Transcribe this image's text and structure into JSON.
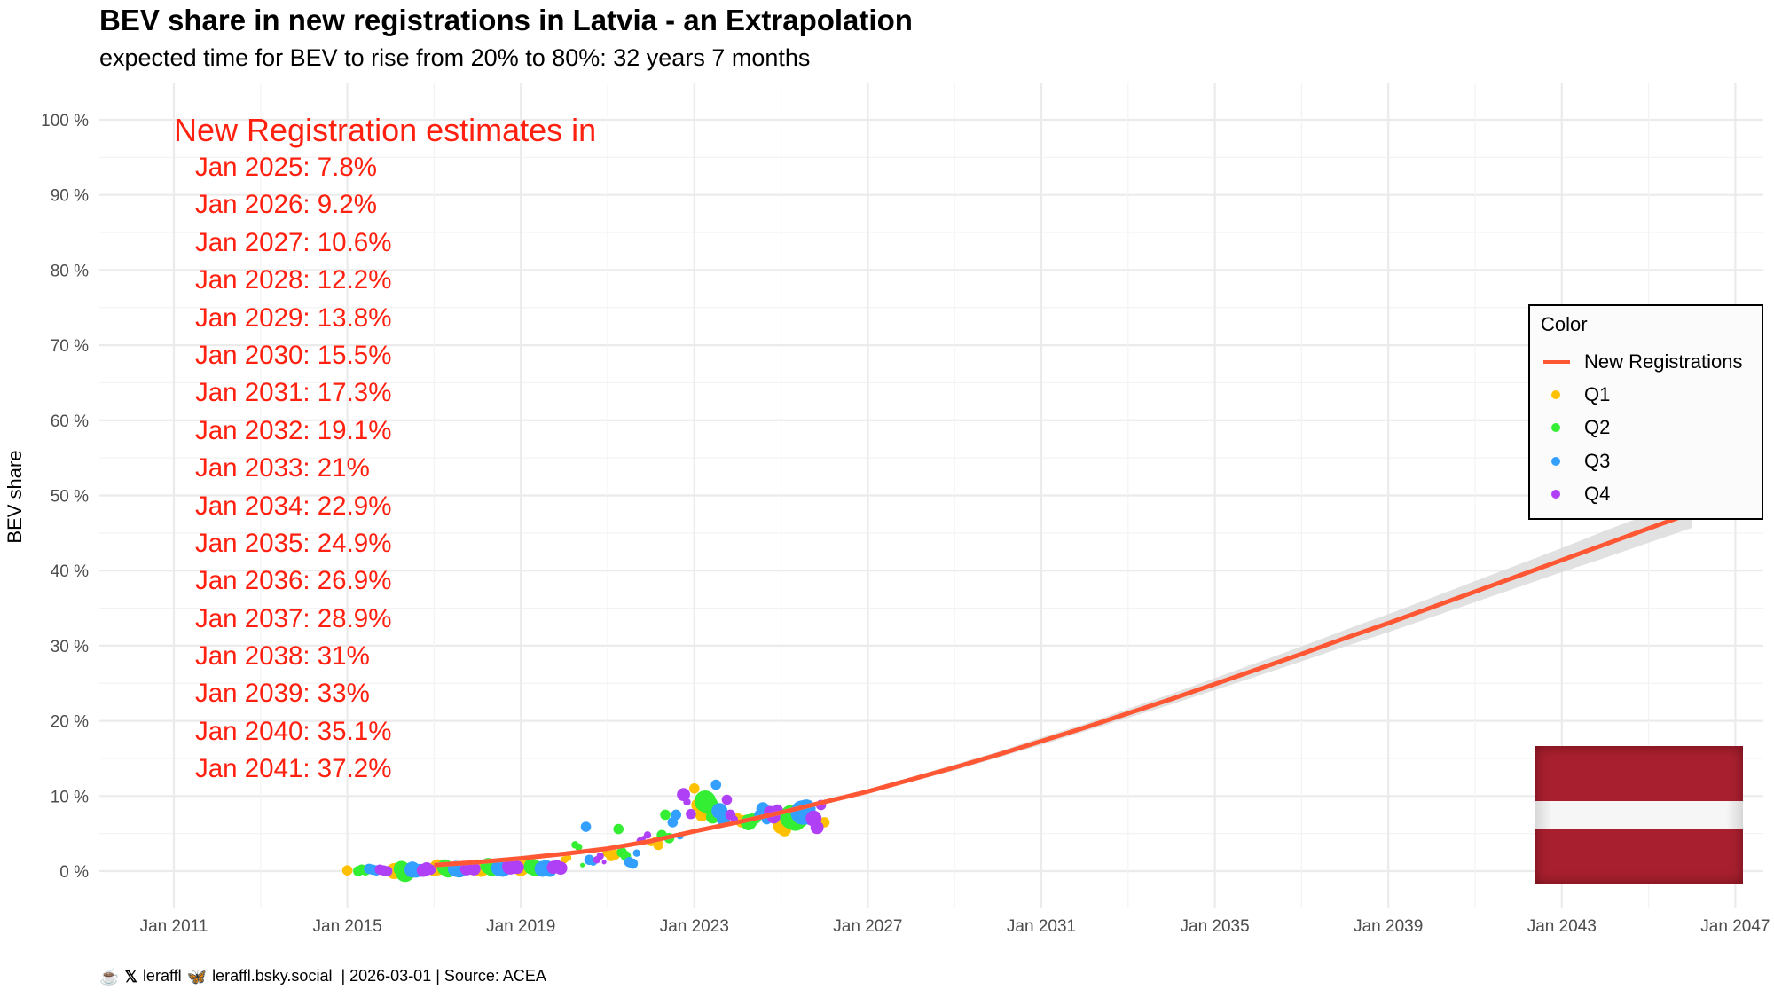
{
  "title": "BEV share in new registrations in Latvia - an Extrapolation",
  "subtitle": "expected time for BEV to rise from 20% to 80%: 32 years 7 months",
  "caption": {
    "coffee_icon": "coffee-cup-icon",
    "x_icon": "x-logo-icon",
    "x_handle": "leraffl",
    "bluesky_icon": "butterfly-icon",
    "bluesky_handle": "leraffl.bsky.social",
    "date_source": "| 2026-03-01 | Source: ACEA"
  },
  "annotation": {
    "heading": "New Registration estimates in",
    "lines": [
      "Jan 2025: 7.8%",
      "Jan 2026: 9.2%",
      "Jan 2027: 10.6%",
      "Jan 2028: 12.2%",
      "Jan 2029: 13.8%",
      "Jan 2030: 15.5%",
      "Jan 2031: 17.3%",
      "Jan 2032: 19.1%",
      "Jan 2033: 21%",
      "Jan 2034: 22.9%",
      "Jan 2035: 24.9%",
      "Jan 2036: 26.9%",
      "Jan 2037: 28.9%",
      "Jan 2038: 31%",
      "Jan 2039: 33%",
      "Jan 2040: 35.1%",
      "Jan 2041: 37.2%"
    ],
    "color": "#ff200f"
  },
  "legend": {
    "title": "Color",
    "items": [
      {
        "label": "New Registrations",
        "kind": "line",
        "color": "#ff5733"
      },
      {
        "label": "Q1",
        "kind": "dot",
        "color": "#ffc000"
      },
      {
        "label": "Q2",
        "kind": "dot",
        "color": "#33ee33"
      },
      {
        "label": "Q3",
        "kind": "dot",
        "color": "#33a0ff"
      },
      {
        "label": "Q4",
        "kind": "dot",
        "color": "#b040f5"
      }
    ]
  },
  "flag": {
    "country": "Latvia",
    "colors": [
      "#a8202f",
      "#f6f6f6",
      "#a8202f"
    ]
  },
  "chart_data": {
    "type": "scatter",
    "title": "BEV share in new registrations in Latvia - an Extrapolation",
    "xlabel": "",
    "ylabel": "BEV share",
    "xlim": [
      2009.6,
      2047.2
    ],
    "ylim": [
      -5,
      105
    ],
    "x_ticks": [
      2011,
      2015,
      2019,
      2023,
      2027,
      2031,
      2035,
      2039,
      2043,
      2047
    ],
    "x_tick_labels": [
      "Jan 2011",
      "Jan 2015",
      "Jan 2019",
      "Jan 2023",
      "Jan 2027",
      "Jan 2031",
      "Jan 2035",
      "Jan 2039",
      "Jan 2043",
      "Jan 2047"
    ],
    "y_ticks": [
      0,
      10,
      20,
      30,
      40,
      50,
      60,
      70,
      80,
      90,
      100
    ],
    "y_tick_labels": [
      "0 %",
      "10 %",
      "20 %",
      "30 %",
      "40 %",
      "50 %",
      "60 %",
      "70 %",
      "80 %",
      "90 %",
      "100 %"
    ],
    "grid": true,
    "legend_position": "right",
    "fit_line": {
      "name": "New Registrations",
      "x": [
        2017.0,
        2018,
        2019,
        2020,
        2021,
        2022,
        2023,
        2024,
        2025,
        2026,
        2027,
        2028,
        2029,
        2030,
        2031,
        2032,
        2033,
        2034,
        2035,
        2036,
        2037,
        2038,
        2039,
        2040,
        2041,
        2042,
        2043,
        2044,
        2045,
        2046
      ],
      "y": [
        0.8,
        1.2,
        1.7,
        2.3,
        3.0,
        4.0,
        5.3,
        6.5,
        7.8,
        9.2,
        10.6,
        12.2,
        13.8,
        15.5,
        17.3,
        19.1,
        21.0,
        22.9,
        24.9,
        26.9,
        28.9,
        31.0,
        33.0,
        35.1,
        37.2,
        39.3,
        41.4,
        43.5,
        45.6,
        47.7
      ],
      "ci_halfwidth": [
        0.3,
        0.3,
        0.3,
        0.3,
        0.3,
        0.3,
        0.3,
        0.3,
        0.3,
        0.3,
        0.3,
        0.3,
        0.4,
        0.4,
        0.5,
        0.5,
        0.6,
        0.7,
        0.8,
        0.9,
        1.0,
        1.1,
        1.2,
        1.3,
        1.4,
        1.5,
        1.6,
        1.8,
        1.9,
        2.0
      ]
    },
    "series": [
      {
        "name": "Q1",
        "color": "#ffc000",
        "points": [
          [
            2015.0,
            0.1,
            3
          ],
          [
            2016.08,
            0.0,
            5
          ],
          [
            2016.17,
            0.3,
            4
          ],
          [
            2017.0,
            0.2,
            4
          ],
          [
            2017.08,
            0.5,
            5
          ],
          [
            2017.17,
            0.4,
            4
          ],
          [
            2018.0,
            0.5,
            5
          ],
          [
            2018.08,
            0.3,
            5
          ],
          [
            2018.17,
            0.6,
            4
          ],
          [
            2019.0,
            0.4,
            5
          ],
          [
            2019.08,
            0.7,
            4
          ],
          [
            2019.17,
            1.2,
            3
          ],
          [
            2020.0,
            1.5,
            2
          ],
          [
            2020.08,
            1.8,
            2
          ],
          [
            2021.0,
            2.5,
            3
          ],
          [
            2021.08,
            2.0,
            3
          ],
          [
            2021.17,
            2.2,
            3
          ],
          [
            2022.0,
            3.8,
            2
          ],
          [
            2022.08,
            4.0,
            2
          ],
          [
            2022.17,
            3.5,
            3
          ],
          [
            2023.0,
            11.0,
            3
          ],
          [
            2023.08,
            8.8,
            4
          ],
          [
            2023.17,
            7.5,
            4
          ],
          [
            2024.0,
            7.0,
            3
          ],
          [
            2024.08,
            6.5,
            3
          ],
          [
            2024.17,
            6.8,
            3
          ],
          [
            2025.0,
            6.0,
            5
          ],
          [
            2025.08,
            5.5,
            4
          ],
          [
            2025.17,
            6.7,
            4
          ],
          [
            2026.0,
            6.5,
            3
          ]
        ]
      },
      {
        "name": "Q2",
        "color": "#33ee33",
        "points": [
          [
            2015.25,
            0.0,
            3
          ],
          [
            2015.33,
            0.2,
            3
          ],
          [
            2015.42,
            0.1,
            3
          ],
          [
            2016.25,
            0.3,
            5
          ],
          [
            2016.33,
            -0.2,
            6
          ],
          [
            2016.42,
            0.0,
            5
          ],
          [
            2017.25,
            0.5,
            5
          ],
          [
            2017.33,
            0.2,
            5
          ],
          [
            2017.42,
            0.3,
            4
          ],
          [
            2018.25,
            0.7,
            5
          ],
          [
            2018.33,
            0.4,
            5
          ],
          [
            2018.42,
            0.6,
            4
          ],
          [
            2019.25,
            0.6,
            5
          ],
          [
            2019.33,
            0.4,
            5
          ],
          [
            2019.42,
            0.2,
            4
          ],
          [
            2020.25,
            3.5,
            2
          ],
          [
            2020.33,
            3.2,
            2
          ],
          [
            2020.42,
            0.8,
            1
          ],
          [
            2021.25,
            5.6,
            3
          ],
          [
            2021.33,
            2.5,
            3
          ],
          [
            2021.42,
            2.0,
            3
          ],
          [
            2022.25,
            4.8,
            3
          ],
          [
            2022.33,
            7.5,
            3
          ],
          [
            2022.42,
            4.4,
            3
          ],
          [
            2023.25,
            9.3,
            7
          ],
          [
            2023.33,
            8.8,
            6
          ],
          [
            2023.42,
            7.2,
            4
          ],
          [
            2024.25,
            6.5,
            5
          ],
          [
            2024.33,
            6.8,
            4
          ],
          [
            2024.42,
            7.0,
            3
          ],
          [
            2025.25,
            7.2,
            8
          ],
          [
            2025.33,
            6.8,
            7
          ],
          [
            2025.42,
            7.0,
            6
          ]
        ]
      },
      {
        "name": "Q3",
        "color": "#33a0ff",
        "points": [
          [
            2015.5,
            0.3,
            3
          ],
          [
            2015.58,
            0.2,
            3
          ],
          [
            2015.67,
            0.1,
            3
          ],
          [
            2016.5,
            0.2,
            5
          ],
          [
            2016.58,
            0.0,
            4
          ],
          [
            2016.67,
            0.1,
            4
          ],
          [
            2017.5,
            0.3,
            5
          ],
          [
            2017.58,
            0.2,
            5
          ],
          [
            2017.67,
            0.5,
            4
          ],
          [
            2018.5,
            0.4,
            5
          ],
          [
            2018.58,
            0.3,
            5
          ],
          [
            2018.67,
            0.5,
            4
          ],
          [
            2019.5,
            0.3,
            5
          ],
          [
            2019.58,
            0.4,
            5
          ],
          [
            2019.67,
            0.1,
            4
          ],
          [
            2020.5,
            5.9,
            3
          ],
          [
            2020.58,
            1.5,
            3
          ],
          [
            2020.67,
            1.2,
            2
          ],
          [
            2021.5,
            1.2,
            3
          ],
          [
            2021.58,
            1.0,
            3
          ],
          [
            2021.67,
            2.4,
            2
          ],
          [
            2022.5,
            6.5,
            3
          ],
          [
            2022.58,
            7.5,
            3
          ],
          [
            2022.67,
            4.7,
            2
          ],
          [
            2023.5,
            11.5,
            3
          ],
          [
            2023.58,
            8.0,
            5
          ],
          [
            2023.67,
            6.8,
            4
          ],
          [
            2024.5,
            7.5,
            3
          ],
          [
            2024.58,
            8.3,
            4
          ],
          [
            2024.67,
            6.9,
            3
          ],
          [
            2025.5,
            7.8,
            8
          ],
          [
            2025.58,
            8.3,
            6
          ],
          [
            2025.67,
            7.2,
            5
          ]
        ]
      },
      {
        "name": "Q4",
        "color": "#b040f5",
        "points": [
          [
            2015.75,
            0.2,
            3
          ],
          [
            2015.83,
            0.1,
            3
          ],
          [
            2015.92,
            0.0,
            3
          ],
          [
            2016.75,
            0.1,
            4
          ],
          [
            2016.83,
            0.3,
            4
          ],
          [
            2016.92,
            0.2,
            3
          ],
          [
            2017.75,
            0.3,
            4
          ],
          [
            2017.83,
            0.4,
            4
          ],
          [
            2017.92,
            0.3,
            4
          ],
          [
            2018.75,
            0.6,
            5
          ],
          [
            2018.83,
            0.5,
            4
          ],
          [
            2018.92,
            0.5,
            4
          ],
          [
            2019.75,
            0.5,
            4
          ],
          [
            2019.83,
            0.6,
            4
          ],
          [
            2019.92,
            0.4,
            4
          ],
          [
            2020.75,
            1.5,
            2
          ],
          [
            2020.83,
            2.0,
            2
          ],
          [
            2020.92,
            1.2,
            1
          ],
          [
            2021.75,
            4.0,
            2
          ],
          [
            2021.83,
            4.4,
            1
          ],
          [
            2021.92,
            4.8,
            2
          ],
          [
            2022.75,
            10.2,
            4
          ],
          [
            2022.83,
            9.2,
            2
          ],
          [
            2022.92,
            7.6,
            3
          ],
          [
            2023.75,
            9.5,
            3
          ],
          [
            2023.83,
            7.5,
            3
          ],
          [
            2023.92,
            6.9,
            2
          ],
          [
            2024.75,
            7.8,
            4
          ],
          [
            2024.83,
            7.2,
            4
          ],
          [
            2024.92,
            8.2,
            3
          ],
          [
            2025.75,
            7.0,
            5
          ],
          [
            2025.83,
            5.8,
            4
          ],
          [
            2025.92,
            8.8,
            3
          ]
        ]
      }
    ]
  }
}
